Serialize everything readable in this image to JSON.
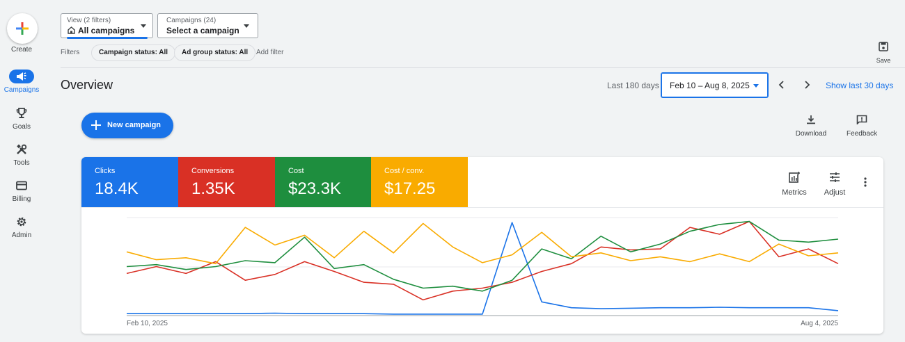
{
  "nav": {
    "create_label": "Create",
    "items": [
      {
        "label": "Campaigns",
        "icon": "campaigns-icon",
        "active": true
      },
      {
        "label": "Goals",
        "icon": "trophy-icon"
      },
      {
        "label": "Tools",
        "icon": "tools-icon"
      },
      {
        "label": "Billing",
        "icon": "credit-card-icon"
      },
      {
        "label": "Admin",
        "icon": "gear-icon"
      }
    ]
  },
  "view_picker": {
    "small": "View (2 filters)",
    "value": "All campaigns"
  },
  "campaign_picker": {
    "small": "Campaigns (24)",
    "value": "Select a campaign"
  },
  "filters": {
    "label": "Filters",
    "chips": [
      "Campaign status: All",
      "Ad group status: All"
    ],
    "add": "Add filter"
  },
  "save_label": "Save",
  "header": {
    "title": "Overview",
    "range_label": "Last 180 days",
    "date_range": "Feb 10 – Aug 8, 2025",
    "show_last": "Show last 30 days"
  },
  "new_campaign_label": "New campaign",
  "tools": {
    "download": "Download",
    "feedback": "Feedback"
  },
  "metrics": [
    {
      "name": "Clicks",
      "value": "18.4K",
      "color": "#1a73e8"
    },
    {
      "name": "Conversions",
      "value": "1.35K",
      "color": "#d93025"
    },
    {
      "name": "Cost",
      "value": "$23.3K",
      "color": "#1e8e3e"
    },
    {
      "name": "Cost / conv.",
      "value": "$17.25",
      "color": "#f9ab00"
    }
  ],
  "card_tools": {
    "metrics": "Metrics",
    "adjust": "Adjust"
  },
  "chart_data": {
    "type": "line",
    "x_start_label": "Feb 10, 2025",
    "x_end_label": "Aug 4, 2025",
    "grid": true,
    "series": [
      {
        "name": "Clicks",
        "color": "#1a73e8",
        "values": [
          2,
          2,
          2,
          2,
          2,
          2.5,
          2,
          2,
          2,
          1.5,
          1.5,
          1.5,
          1.5,
          95,
          14,
          8,
          7,
          7.5,
          8,
          8,
          8.5,
          8,
          8,
          8,
          5
        ]
      },
      {
        "name": "Conversions",
        "color": "#d93025",
        "values": [
          43,
          50,
          43,
          55,
          36,
          42,
          55,
          45,
          34,
          32,
          16,
          25,
          28,
          34,
          45,
          53,
          70,
          67,
          68,
          90,
          83,
          96,
          60,
          68,
          53
        ]
      },
      {
        "name": "Cost",
        "color": "#1e8e3e",
        "values": [
          50,
          52,
          47,
          50,
          56,
          54,
          80,
          48,
          52,
          37,
          28,
          30,
          25,
          36,
          68,
          58,
          81,
          65,
          73,
          86,
          93,
          96,
          77,
          75,
          78
        ]
      },
      {
        "name": "Cost / conv.",
        "color": "#f9ab00",
        "values": [
          65,
          57,
          59,
          53,
          90,
          72,
          82,
          59,
          86,
          64,
          94,
          70,
          54,
          62,
          85,
          60,
          64,
          56,
          60,
          55,
          63,
          55,
          73,
          61,
          64
        ]
      }
    ]
  }
}
